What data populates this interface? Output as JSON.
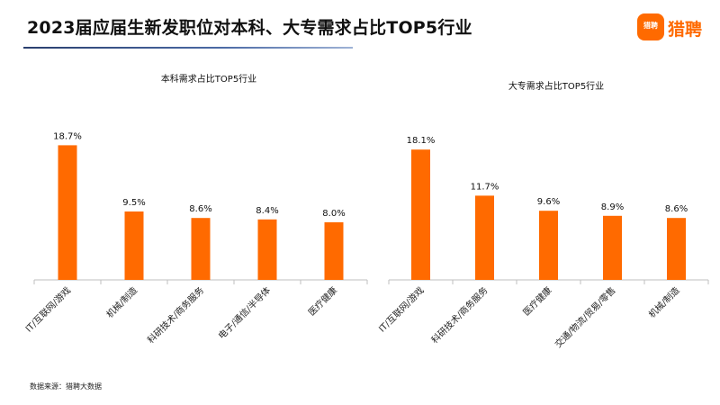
{
  "header": {
    "title": "2023届应届生新发职位对本科、大专需求占比TOP5行业"
  },
  "logo": {
    "badge_text": "猎聘",
    "text": "猎聘",
    "brand_color": "#ff6a00"
  },
  "footer": {
    "source": "数据来源：猎聘大数据"
  },
  "chart_data": [
    {
      "type": "bar",
      "title": "本科需求占比TOP5行业",
      "categories": [
        "IT/互联网/游戏",
        "机械/制造",
        "科研技术/商务服务",
        "电子/通信/半导体",
        "医疗健康"
      ],
      "values": [
        18.7,
        9.5,
        8.6,
        8.4,
        8.0
      ],
      "labels": [
        "18.7%",
        "9.5%",
        "8.6%",
        "8.4%",
        "8.0%"
      ],
      "unit": "%",
      "ylim": [
        0,
        20
      ],
      "bar_color": "#ff6a00",
      "grid": false,
      "legend": "none"
    },
    {
      "type": "bar",
      "title": "大专需求占比TOP5行业",
      "categories": [
        "IT/互联网/游戏",
        "科研技术/商务服务",
        "医疗健康",
        "交通/物流/贸易/零售",
        "机械/制造"
      ],
      "values": [
        18.1,
        11.7,
        9.6,
        8.9,
        8.6
      ],
      "labels": [
        "18.1%",
        "11.7%",
        "9.6%",
        "8.9%",
        "8.6%"
      ],
      "unit": "%",
      "ylim": [
        0,
        20
      ],
      "bar_color": "#ff6a00",
      "grid": false,
      "legend": "none"
    }
  ]
}
